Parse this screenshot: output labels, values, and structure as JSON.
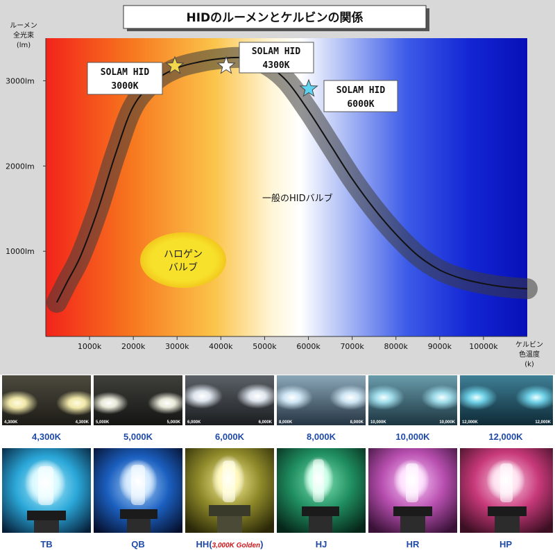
{
  "chart_data": {
    "type": "line",
    "title": "HIDのルーメンとケルビンの関係",
    "ylabel_lines": [
      "ルーメン",
      "全光束",
      "(lm)"
    ],
    "xlabel_lines": [
      "ケルビン",
      "色温度",
      "(k)"
    ],
    "xlim": [
      0,
      11000
    ],
    "ylim": [
      0,
      3500
    ],
    "x_ticks": [
      1000,
      2000,
      3000,
      4000,
      5000,
      6000,
      7000,
      8000,
      9000,
      10000
    ],
    "x_tick_labels": [
      "1000k",
      "2000k",
      "3000k",
      "4000k",
      "5000k",
      "6000k",
      "7000k",
      "8000k",
      "9000k",
      "10000k"
    ],
    "y_ticks": [
      1000,
      2000,
      3000
    ],
    "y_tick_labels": [
      "1000lm",
      "2000lm",
      "3000lm"
    ],
    "series": [
      {
        "name": "一般のHIDバルブ",
        "x": [
          250,
          500,
          800,
          1200,
          1600,
          2000,
          2500,
          3000,
          3500,
          4000,
          4500,
          5000,
          5500,
          6000,
          6500,
          7000,
          7500,
          8000,
          8500,
          9000,
          9500,
          10000,
          10500,
          11000
        ],
        "values": [
          400,
          650,
          950,
          1500,
          2150,
          2700,
          3000,
          3150,
          3220,
          3260,
          3270,
          3200,
          3000,
          2650,
          2250,
          1850,
          1500,
          1200,
          950,
          780,
          680,
          620,
          580,
          560
        ]
      }
    ],
    "annotations": [
      {
        "label_lines": [
          "SOLAM HID",
          "3000K"
        ],
        "star_color": "#f2d64b"
      },
      {
        "label_lines": [
          "SOLAM HID",
          "4300K"
        ],
        "star_color": "#ffffff"
      },
      {
        "label_lines": [
          "SOLAM HID",
          "6000K"
        ],
        "star_color": "#5fd3f2"
      }
    ],
    "halogen_label_lines": [
      "ハロゲン",
      "バルブ"
    ],
    "grid": false
  },
  "color_temps": [
    {
      "label": "4,300K",
      "corner": "4,300K"
    },
    {
      "label": "5,000K",
      "corner": "5,000K"
    },
    {
      "label": "6,000K",
      "corner": "6,000K"
    },
    {
      "label": "8,000K",
      "corner": "8,000K"
    },
    {
      "label": "10,000K",
      "corner": "10,000K"
    },
    {
      "label": "12,000K",
      "corner": "12,000K"
    }
  ],
  "bulbs": [
    {
      "label": "TB",
      "color": "#2aa7d8"
    },
    {
      "label": "QB",
      "color": "#1b5fbf"
    },
    {
      "label": "HH",
      "sub": "3,000K Golden",
      "color": "#8f8a2a"
    },
    {
      "label": "HJ",
      "color": "#1f8d5f"
    },
    {
      "label": "HR",
      "color": "#b84fb0"
    },
    {
      "label": "HP",
      "color": "#c8397a"
    }
  ]
}
